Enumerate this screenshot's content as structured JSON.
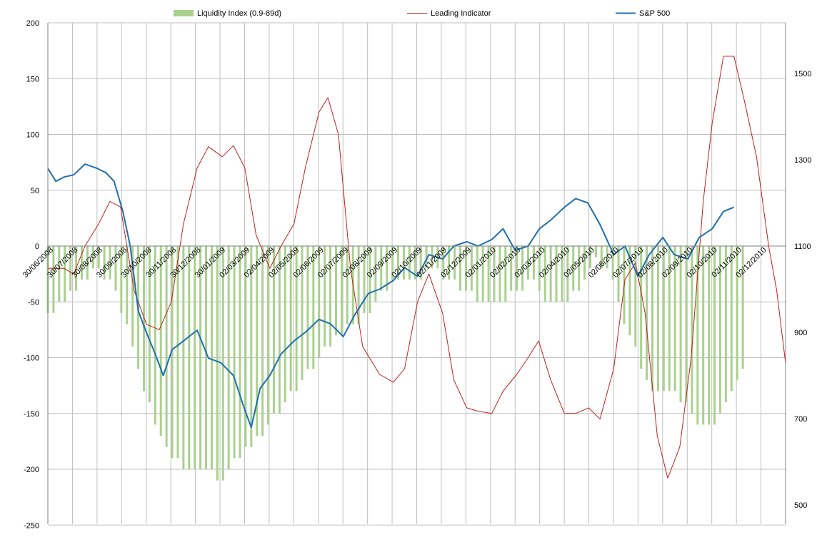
{
  "chart_data": {
    "type": "bar+line",
    "title": "",
    "xlabel": "",
    "ylabel": "",
    "y_left": {
      "min": -250,
      "max": 200,
      "step": 50,
      "ticks": [
        "200",
        "150",
        "100",
        "50",
        "0",
        "-50",
        "-100",
        "-150",
        "-200",
        "-250"
      ]
    },
    "y_right": {
      "min": 500,
      "max": 1600,
      "step": 200,
      "ticks": [
        "1500",
        "1300",
        "1100",
        "900",
        "700",
        "500"
      ]
    },
    "x_domain": [
      "2008-06-30",
      "2010-12-31"
    ],
    "x_ticks": [
      "30/06/2008",
      "30/07/2008",
      "30/08/2008",
      "30/09/2008",
      "30/10/2008",
      "30/11/2008",
      "30/12/2008",
      "30/01/2009",
      "02/03/2009",
      "02/04/2009",
      "02/05/2009",
      "02/06/2009",
      "02/07/2009",
      "02/08/2009",
      "02/09/2009",
      "02/10/2009",
      "02/11/2009",
      "02/12/2009",
      "02/01/2010",
      "02/02/2010",
      "02/03/2010",
      "02/04/2010",
      "02/05/2010",
      "02/06/2010",
      "02/07/2010",
      "02/08/2010",
      "02/09/2010",
      "02/10/2010",
      "02/11/2010",
      "02/12/2010"
    ],
    "grid": true,
    "legend_position": "top",
    "colors": {
      "liquidity": "#a9d18e",
      "leading": "#c0201e",
      "sp500": "#1f6fb0",
      "grid": "#bfbfbf",
      "axis": "#808080"
    },
    "series": [
      {
        "name": "Liquidity Index (0.9-89d)",
        "type": "bar",
        "axis": "left",
        "points": [
          [
            "2008-06-30",
            -60
          ],
          [
            "2008-07-20",
            -50
          ],
          [
            "2008-08-10",
            -30
          ],
          [
            "2008-09-01",
            -20
          ],
          [
            "2008-09-20",
            -40
          ],
          [
            "2008-10-05",
            -70
          ],
          [
            "2008-10-20",
            -110
          ],
          [
            "2008-11-01",
            -140
          ],
          [
            "2008-11-15",
            -170
          ],
          [
            "2008-12-01",
            -190
          ],
          [
            "2008-12-20",
            -200
          ],
          [
            "2009-01-15",
            -200
          ],
          [
            "2009-02-01",
            -210
          ],
          [
            "2009-02-20",
            -190
          ],
          [
            "2009-03-10",
            -180
          ],
          [
            "2009-04-01",
            -160
          ],
          [
            "2009-04-20",
            -140
          ],
          [
            "2009-05-10",
            -120
          ],
          [
            "2009-06-01",
            -100
          ],
          [
            "2009-06-20",
            -80
          ],
          [
            "2009-07-10",
            -70
          ],
          [
            "2009-08-01",
            -60
          ],
          [
            "2009-08-20",
            -40
          ],
          [
            "2009-09-10",
            -30
          ],
          [
            "2009-10-01",
            -30
          ],
          [
            "2009-10-20",
            -20
          ],
          [
            "2009-11-10",
            -30
          ],
          [
            "2009-12-01",
            -40
          ],
          [
            "2009-12-20",
            -50
          ],
          [
            "2010-01-15",
            -50
          ],
          [
            "2010-02-01",
            -40
          ],
          [
            "2010-02-20",
            -30
          ],
          [
            "2010-03-10",
            -50
          ],
          [
            "2010-04-01",
            -50
          ],
          [
            "2010-04-20",
            -40
          ],
          [
            "2010-05-10",
            -10
          ],
          [
            "2010-06-01",
            -30
          ],
          [
            "2010-06-15",
            -70
          ],
          [
            "2010-07-01",
            -100
          ],
          [
            "2010-07-20",
            -130
          ],
          [
            "2010-08-10",
            -130
          ],
          [
            "2010-09-01",
            -140
          ],
          [
            "2010-09-15",
            -160
          ],
          [
            "2010-10-01",
            -160
          ],
          [
            "2010-10-20",
            -140
          ],
          [
            "2010-11-10",
            -110
          ]
        ]
      },
      {
        "name": "Leading Indicator",
        "type": "line",
        "axis": "left",
        "points": [
          [
            "2008-06-30",
            -20
          ],
          [
            "2008-07-20",
            -20
          ],
          [
            "2008-08-01",
            -25
          ],
          [
            "2008-08-15",
            0
          ],
          [
            "2008-09-01",
            20
          ],
          [
            "2008-09-15",
            40
          ],
          [
            "2008-09-28",
            35
          ],
          [
            "2008-10-15",
            -40
          ],
          [
            "2008-10-30",
            -70
          ],
          [
            "2008-11-15",
            -75
          ],
          [
            "2008-11-30",
            -50
          ],
          [
            "2008-12-15",
            20
          ],
          [
            "2009-01-01",
            70
          ],
          [
            "2009-01-15",
            89
          ],
          [
            "2009-02-01",
            80
          ],
          [
            "2009-02-15",
            90
          ],
          [
            "2009-03-01",
            70
          ],
          [
            "2009-03-15",
            10
          ],
          [
            "2009-04-01",
            -20
          ],
          [
            "2009-04-15",
            0
          ],
          [
            "2009-05-01",
            20
          ],
          [
            "2009-05-15",
            70
          ],
          [
            "2009-06-01",
            120
          ],
          [
            "2009-06-12",
            133
          ],
          [
            "2009-06-25",
            100
          ],
          [
            "2009-07-10",
            -20
          ],
          [
            "2009-07-25",
            -90
          ],
          [
            "2009-08-15",
            -115
          ],
          [
            "2009-09-01",
            -122
          ],
          [
            "2009-09-15",
            -110
          ],
          [
            "2009-10-01",
            -50
          ],
          [
            "2009-10-15",
            -25
          ],
          [
            "2009-11-01",
            -60
          ],
          [
            "2009-11-15",
            -120
          ],
          [
            "2009-12-01",
            -145
          ],
          [
            "2009-12-15",
            -148
          ],
          [
            "2010-01-01",
            -150
          ],
          [
            "2010-01-15",
            -130
          ],
          [
            "2010-02-01",
            -115
          ],
          [
            "2010-02-15",
            -100
          ],
          [
            "2010-02-28",
            -85
          ],
          [
            "2010-03-15",
            -120
          ],
          [
            "2010-04-01",
            -150
          ],
          [
            "2010-04-15",
            -150
          ],
          [
            "2010-05-01",
            -145
          ],
          [
            "2010-05-15",
            -155
          ],
          [
            "2010-06-01",
            -110
          ],
          [
            "2010-06-15",
            -30
          ],
          [
            "2010-06-28",
            -15
          ],
          [
            "2010-07-10",
            -60
          ],
          [
            "2010-07-25",
            -170
          ],
          [
            "2010-08-07",
            -208
          ],
          [
            "2010-08-22",
            -180
          ],
          [
            "2010-09-05",
            -100
          ],
          [
            "2010-09-20",
            40
          ],
          [
            "2010-10-01",
            110
          ],
          [
            "2010-10-15",
            170
          ],
          [
            "2010-10-28",
            170
          ],
          [
            "2010-11-10",
            130
          ],
          [
            "2010-11-25",
            80
          ],
          [
            "2010-12-10",
            0
          ],
          [
            "2010-12-20",
            -40
          ],
          [
            "2010-12-31",
            -105
          ]
        ]
      },
      {
        "name": "S&P 500",
        "type": "line",
        "axis": "right",
        "points": [
          [
            "2008-06-30",
            1280
          ],
          [
            "2008-07-10",
            1250
          ],
          [
            "2008-07-20",
            1260
          ],
          [
            "2008-08-01",
            1265
          ],
          [
            "2008-08-15",
            1290
          ],
          [
            "2008-08-30",
            1280
          ],
          [
            "2008-09-10",
            1270
          ],
          [
            "2008-09-20",
            1250
          ],
          [
            "2008-10-01",
            1180
          ],
          [
            "2008-10-10",
            1100
          ],
          [
            "2008-10-20",
            950
          ],
          [
            "2008-10-30",
            900
          ],
          [
            "2008-11-10",
            850
          ],
          [
            "2008-11-20",
            800
          ],
          [
            "2008-12-01",
            860
          ],
          [
            "2008-12-15",
            880
          ],
          [
            "2009-01-01",
            905
          ],
          [
            "2009-01-15",
            840
          ],
          [
            "2009-01-30",
            830
          ],
          [
            "2009-02-15",
            800
          ],
          [
            "2009-03-01",
            720
          ],
          [
            "2009-03-09",
            680
          ],
          [
            "2009-03-20",
            770
          ],
          [
            "2009-04-01",
            800
          ],
          [
            "2009-04-15",
            850
          ],
          [
            "2009-05-01",
            880
          ],
          [
            "2009-05-15",
            900
          ],
          [
            "2009-06-01",
            930
          ],
          [
            "2009-06-15",
            920
          ],
          [
            "2009-07-01",
            890
          ],
          [
            "2009-07-15",
            940
          ],
          [
            "2009-08-01",
            990
          ],
          [
            "2009-08-15",
            1000
          ],
          [
            "2009-09-01",
            1020
          ],
          [
            "2009-09-15",
            1050
          ],
          [
            "2009-10-01",
            1030
          ],
          [
            "2009-10-15",
            1080
          ],
          [
            "2009-11-01",
            1070
          ],
          [
            "2009-11-15",
            1100
          ],
          [
            "2009-12-01",
            1110
          ],
          [
            "2009-12-15",
            1100
          ],
          [
            "2010-01-01",
            1115
          ],
          [
            "2010-01-15",
            1140
          ],
          [
            "2010-01-30",
            1090
          ],
          [
            "2010-02-15",
            1100
          ],
          [
            "2010-03-01",
            1140
          ],
          [
            "2010-03-15",
            1160
          ],
          [
            "2010-04-01",
            1190
          ],
          [
            "2010-04-15",
            1210
          ],
          [
            "2010-04-30",
            1200
          ],
          [
            "2010-05-15",
            1150
          ],
          [
            "2010-06-01",
            1080
          ],
          [
            "2010-06-15",
            1100
          ],
          [
            "2010-07-01",
            1030
          ],
          [
            "2010-07-15",
            1080
          ],
          [
            "2010-08-01",
            1120
          ],
          [
            "2010-08-15",
            1080
          ],
          [
            "2010-09-01",
            1070
          ],
          [
            "2010-09-15",
            1120
          ],
          [
            "2010-10-01",
            1140
          ],
          [
            "2010-10-15",
            1180
          ],
          [
            "2010-10-28",
            1190
          ]
        ]
      }
    ]
  }
}
